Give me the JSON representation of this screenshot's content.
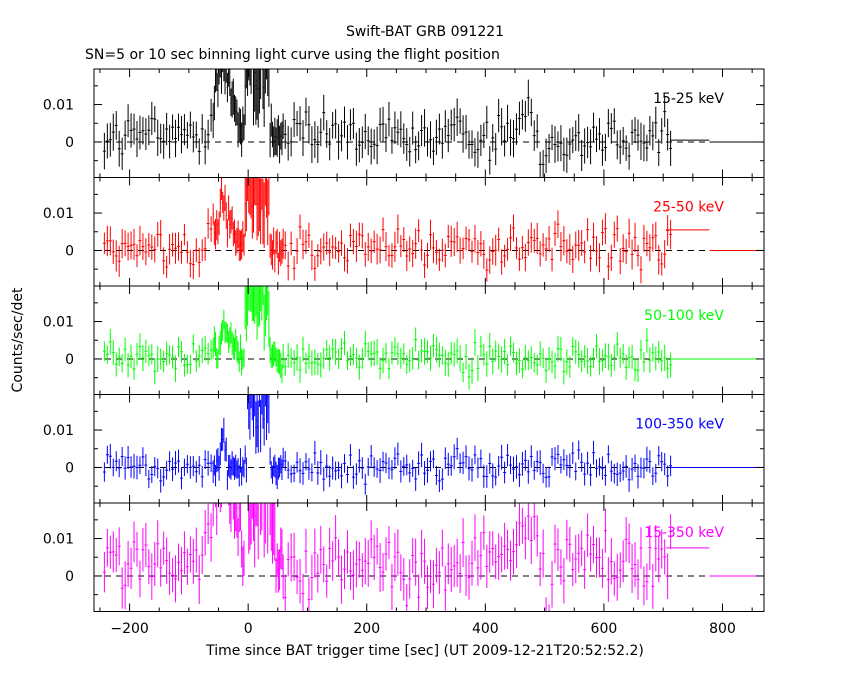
{
  "title": "Swift-BAT GRB 091221",
  "subtitle": "SN=5 or 10 sec binning light curve using the flight position",
  "chart_data": {
    "type": "line",
    "xlabel": "Time since BAT trigger time [sec] (UT 2009-12-21T20:52:52.2)",
    "ylabel": "Counts/sec/det",
    "xlim": [
      -260,
      870
    ],
    "ylim": [
      -0.0095,
      0.0195
    ],
    "x_ticks": [
      -200,
      0,
      200,
      400,
      600,
      800
    ],
    "y_ticks": [
      0,
      0.01
    ],
    "y_tick_labels": [
      "0",
      "0.01"
    ],
    "grid": false,
    "zero_reference_line": "dashed",
    "panels": [
      {
        "name": "15-25 keV",
        "color": "#000000",
        "profile": {
          "noise": 0.0042,
          "bias": 0.0015,
          "precursor": {
            "center": -42,
            "width": 22,
            "peak": 0.018
          },
          "main": {
            "start": -5,
            "end": 35,
            "peak": 0.035
          },
          "late_bump": {
            "center": 465,
            "width": 22,
            "peak": 0.006
          },
          "dip": {
            "at": 495,
            "value": -0.006
          },
          "tail_bins": [
            {
              "x0": 712,
              "x1": 778,
              "value": 0.0005
            },
            {
              "x0": 778,
              "x1": 870,
              "value": 0.0
            }
          ]
        }
      },
      {
        "name": "25-50 keV",
        "color": "#ff0000",
        "profile": {
          "noise": 0.0035,
          "bias": 0.0005,
          "precursor": {
            "center": -40,
            "width": 20,
            "peak": 0.011
          },
          "main": {
            "start": -5,
            "end": 35,
            "peak": 0.022
          },
          "late_bump": {
            "center": 0,
            "width": 1,
            "peak": 0.0
          },
          "dip": {
            "at": -1000,
            "value": 0
          },
          "tail_bins": [
            {
              "x0": 705,
              "x1": 778,
              "value": 0.0055
            },
            {
              "x0": 778,
              "x1": 870,
              "value": 0.0
            }
          ]
        }
      },
      {
        "name": "50-100 keV",
        "color": "#00ff00",
        "profile": {
          "noise": 0.003,
          "bias": 0.0004,
          "precursor": {
            "center": -38,
            "width": 15,
            "peak": 0.008
          },
          "main": {
            "start": -5,
            "end": 35,
            "peak": 0.022
          },
          "late_bump": {
            "center": 0,
            "width": 1,
            "peak": 0.0
          },
          "dip": {
            "at": -1000,
            "value": 0
          },
          "tail_bins": [
            {
              "x0": 712,
              "x1": 870,
              "value": 0.0
            }
          ]
        }
      },
      {
        "name": "100-350 keV",
        "color": "#0000ff",
        "profile": {
          "noise": 0.0028,
          "bias": 0.0002,
          "precursor": {
            "center": -42,
            "width": 4,
            "peak": 0.009
          },
          "main": {
            "start": -2,
            "end": 35,
            "peak": 0.025
          },
          "late_bump": {
            "center": 0,
            "width": 1,
            "peak": 0.0
          },
          "dip": {
            "at": -1000,
            "value": 0
          },
          "tail_bins": [
            {
              "x0": 712,
              "x1": 870,
              "value": 0.0
            }
          ]
        }
      },
      {
        "name": "15-350 keV",
        "color": "#ff00ff",
        "profile": {
          "noise": 0.0055,
          "bias": 0.003,
          "precursor": {
            "center": -42,
            "width": 25,
            "peak": 0.025
          },
          "main": {
            "start": -5,
            "end": 45,
            "peak": 0.04
          },
          "late_bump": {
            "center": 465,
            "width": 25,
            "peak": 0.01
          },
          "dip": {
            "at": 505,
            "value": -0.012
          },
          "tail_bins": [
            {
              "x0": 705,
              "x1": 778,
              "value": 0.0075
            },
            {
              "x0": 778,
              "x1": 870,
              "value": 0.0
            }
          ]
        }
      }
    ]
  }
}
